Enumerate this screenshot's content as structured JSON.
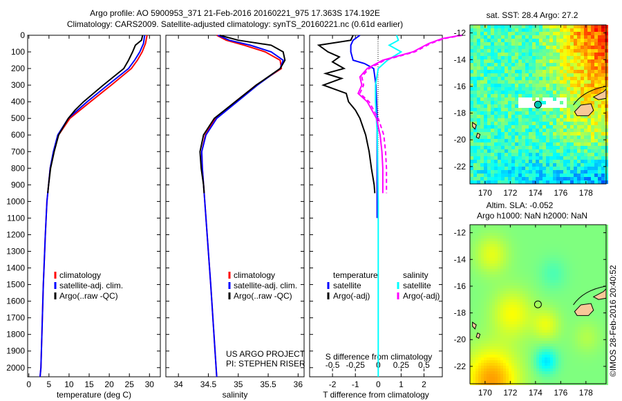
{
  "title": {
    "line1": "Argo profile: AO 5900953_371 21-Feb-2016 20160221_975 17.363S 174.192E",
    "line2": "Climatology: CARS2009. Satellite-adjusted climatology: synTS_20160221.nc (0.61d earlier)"
  },
  "credit": "©IMOS 28-Feb-2016 20:40:52",
  "colors": {
    "climatology": "#ff0000",
    "satellite": "#0000ff",
    "argo": "#000000",
    "sal_satellite": "#00ffff",
    "sal_argo": "#ff00ff",
    "land": "#f8c898"
  },
  "chart_data": [
    {
      "type": "line",
      "id": "temperature",
      "xlabel": "temperature (deg C)",
      "xlim": [
        -0.3,
        32.7
      ],
      "ylim": [
        0,
        2055
      ],
      "xticks": [
        0,
        5,
        10,
        15,
        20,
        25,
        30
      ],
      "xticklabels": [
        "0",
        "5",
        "10",
        "15",
        "20",
        "25",
        "30"
      ],
      "yticks": [
        0,
        100,
        200,
        300,
        400,
        500,
        600,
        700,
        800,
        900,
        1000,
        1100,
        1200,
        1300,
        1400,
        1500,
        1600,
        1700,
        1800,
        1900,
        2000
      ],
      "yticklabels": [
        "0",
        "100",
        "200",
        "300",
        "400",
        "500",
        "600",
        "700",
        "800",
        "900",
        "1000",
        "1100",
        "1200",
        "1300",
        "1400",
        "1500",
        "1600",
        "1700",
        "1800",
        "1900",
        "2000"
      ],
      "legend": [
        "climatology",
        "satellite-adj. clim.",
        "Argo(..raw -QC)"
      ],
      "series": [
        {
          "name": "climatology",
          "color": "#ff0000",
          "depth": [
            0,
            50,
            100,
            150,
            200,
            300,
            400,
            500,
            600,
            700,
            800,
            900,
            1000,
            1200,
            1500,
            2000,
            2055
          ],
          "values": [
            29.4,
            29.0,
            28.2,
            27.0,
            25.5,
            20.5,
            15.3,
            10.2,
            7.4,
            6.2,
            5.3,
            4.9,
            4.5,
            4.1,
            3.6,
            3.0,
            2.8
          ]
        },
        {
          "name": "satellite-adj. clim.",
          "color": "#0000ff",
          "depth": [
            0,
            50,
            100,
            150,
            200,
            300,
            400,
            500,
            600,
            700,
            800,
            900,
            1000,
            1200,
            1500,
            2000,
            2055
          ],
          "values": [
            28.8,
            28.5,
            27.6,
            26.3,
            24.8,
            19.6,
            14.5,
            9.8,
            7.2,
            6.1,
            5.3,
            4.9,
            4.5,
            4.1,
            3.6,
            3.0,
            2.8
          ]
        },
        {
          "name": "Argo(..raw -QC)",
          "color": "#000000",
          "depth": [
            0,
            30,
            60,
            100,
            150,
            200,
            300,
            400,
            450,
            500,
            600,
            700,
            800,
            900,
            950
          ],
          "values": [
            28.3,
            28.0,
            26.5,
            25.8,
            24.8,
            23.6,
            18.5,
            13.6,
            11.5,
            9.8,
            7.4,
            6.3,
            5.4,
            4.9,
            4.7
          ]
        }
      ]
    },
    {
      "type": "line",
      "id": "salinity",
      "xlabel": "salinity",
      "xlim": [
        33.79,
        36.1
      ],
      "ylim": [
        0,
        2055
      ],
      "xticks": [
        34,
        34.5,
        35,
        35.5,
        36
      ],
      "xticklabels": [
        "34",
        "34.5",
        "35",
        "35.5",
        "36"
      ],
      "legend": [
        "climatology",
        "satellite-adj. clim.",
        "Argo(..raw -QC)"
      ],
      "project": [
        "US ARGO PROJECT",
        "PI: STEPHEN RISER"
      ],
      "series": [
        {
          "name": "climatology",
          "color": "#ff0000",
          "depth": [
            0,
            30,
            60,
            100,
            150,
            200,
            300,
            400,
            500,
            600,
            700,
            800,
            1000,
            1500,
            2000,
            2055
          ],
          "values": [
            34.64,
            34.8,
            35.1,
            35.45,
            35.7,
            35.72,
            35.3,
            34.95,
            34.62,
            34.45,
            34.39,
            34.4,
            34.44,
            34.54,
            34.63,
            34.64
          ]
        },
        {
          "name": "satellite-adj. clim.",
          "color": "#0000ff",
          "depth": [
            0,
            30,
            60,
            100,
            150,
            200,
            300,
            400,
            500,
            600,
            700,
            800,
            1000,
            1500,
            2000,
            2055
          ],
          "values": [
            34.66,
            34.85,
            35.2,
            35.55,
            35.75,
            35.7,
            35.32,
            34.98,
            34.64,
            34.46,
            34.39,
            34.4,
            34.44,
            34.54,
            34.63,
            34.64
          ]
        },
        {
          "name": "Argo(..raw -QC)",
          "color": "#000000",
          "depth": [
            0,
            30,
            60,
            100,
            150,
            200,
            300,
            400,
            500,
            600,
            700,
            800,
            900,
            950
          ],
          "values": [
            34.69,
            35.0,
            35.55,
            35.75,
            35.78,
            35.7,
            35.3,
            34.95,
            34.6,
            34.42,
            34.36,
            34.38,
            34.42,
            34.43
          ]
        }
      ]
    },
    {
      "type": "line",
      "id": "difference",
      "xlabel": "T difference from climatology",
      "x2label": "S difference from climatology",
      "xlim": [
        -3.0,
        2.8
      ],
      "x2lim": [
        -0.75,
        0.7
      ],
      "ylim": [
        0,
        2055
      ],
      "xticks": [
        -2,
        -1,
        0,
        1,
        2
      ],
      "xticklabels": [
        "-2",
        "-1",
        "0",
        "1",
        "2"
      ],
      "x2ticks": [
        -0.5,
        -0.25,
        0,
        0.25,
        0.5
      ],
      "x2ticklabels": [
        "-0.5",
        "-0.25",
        "0",
        "0.25",
        "0.5"
      ],
      "legend": {
        "temperature": "temperature",
        "salinity": "salinity",
        "t_sat": "satellite",
        "t_argo": "Argo(-adj)",
        "s_sat": "satellite",
        "s_argo": "Argo(-adj)"
      },
      "series": [
        {
          "name": "T satellite",
          "axis": "T",
          "color": "#0000ff",
          "depth": [
            0,
            30,
            60,
            100,
            150,
            170,
            200,
            300,
            500,
            800,
            1100
          ],
          "values": [
            -0.8,
            -1.1,
            -1.2,
            -1.2,
            -1.1,
            -0.6,
            -0.2,
            -0.1,
            -0.05,
            -0.05,
            -0.05
          ]
        },
        {
          "name": "T Argo(-adj)",
          "axis": "T",
          "color": "#000000",
          "depth": [
            0,
            30,
            60,
            100,
            130,
            160,
            200,
            230,
            260,
            300,
            350,
            400,
            450,
            500,
            600,
            700,
            800,
            900,
            950
          ],
          "values": [
            -1.1,
            -1.2,
            -2.6,
            -2.2,
            -1.7,
            -2.0,
            -1.5,
            -2.3,
            -1.6,
            -2.4,
            -1.4,
            -1.3,
            -1.0,
            -0.8,
            -0.55,
            -0.4,
            -0.3,
            -0.18,
            -0.15
          ]
        },
        {
          "name": "S satellite",
          "axis": "S",
          "color": "#00ffff",
          "depth": [
            0,
            30,
            60,
            100,
            150,
            200,
            300,
            400,
            600,
            1000,
            2055
          ],
          "values": [
            0.2,
            0.22,
            0.12,
            0.25,
            0.1,
            0.0,
            -0.03,
            -0.03,
            -0.01,
            0.0,
            0.0
          ]
        },
        {
          "name": "S Argo(-adj)",
          "axis": "S",
          "color": "#ff00ff",
          "depth": [
            0,
            20,
            50,
            100,
            150,
            200,
            250,
            300,
            350,
            400,
            500,
            600,
            700,
            800,
            950
          ],
          "values": [
            0.9,
            0.7,
            0.55,
            0.38,
            0.05,
            -0.12,
            -0.2,
            -0.18,
            -0.22,
            -0.12,
            -0.02,
            0.02,
            0.04,
            0.05,
            0.05
          ]
        }
      ]
    },
    {
      "type": "heatmap",
      "id": "sst-map",
      "title": "sat. SST: 28.4  Argo: 27.2",
      "xlim": [
        168.8,
        179.6
      ],
      "ylim": [
        -23.3,
        -11.4
      ],
      "xticks": [
        170,
        172,
        174,
        176,
        178
      ],
      "xticklabels": [
        "170",
        "172",
        "174",
        "176",
        "178"
      ],
      "yticks": [
        -12,
        -14,
        -16,
        -18,
        -20,
        -22
      ],
      "yticklabels": [
        "-12",
        "-14",
        "-16",
        "-18",
        "-20",
        "-22"
      ],
      "profile_location": [
        174.192,
        -17.363
      ]
    },
    {
      "type": "heatmap",
      "id": "sla-map",
      "title": "Altim. SLA: -0.052",
      "subtitle": "Argo h1000: NaN h2000: NaN",
      "xlim": [
        168.8,
        179.6
      ],
      "ylim": [
        -23.3,
        -11.4
      ],
      "xticks": [
        170,
        172,
        174,
        176,
        178
      ],
      "xticklabels": [
        "170",
        "172",
        "174",
        "176",
        "178"
      ],
      "yticks": [
        -12,
        -14,
        -16,
        -18,
        -20,
        -22
      ],
      "yticklabels": [
        "-12",
        "-14",
        "-16",
        "-18",
        "-20",
        "-22"
      ],
      "profile_location": [
        174.192,
        -17.363
      ]
    }
  ]
}
